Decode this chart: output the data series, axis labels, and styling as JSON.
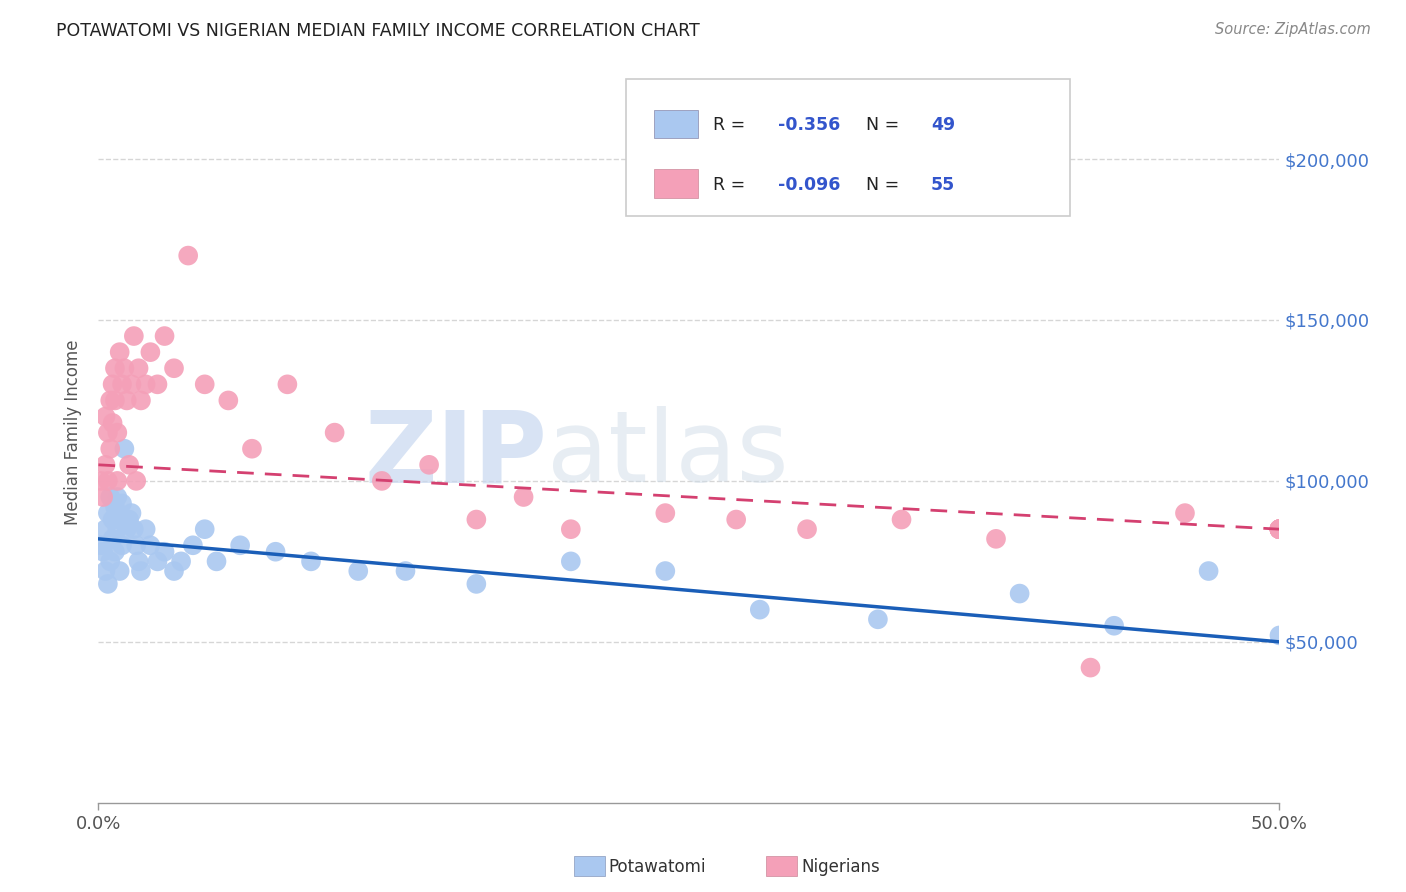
{
  "title": "POTAWATOMI VS NIGERIAN MEDIAN FAMILY INCOME CORRELATION CHART",
  "source": "Source: ZipAtlas.com",
  "ylabel": "Median Family Income",
  "xlim": [
    0.0,
    0.5
  ],
  "ylim": [
    0,
    230000
  ],
  "xtick_positions": [
    0.0,
    0.5
  ],
  "xtick_labels": [
    "0.0%",
    "50.0%"
  ],
  "ytick_positions": [
    50000,
    100000,
    150000,
    200000
  ],
  "ytick_labels": [
    "$50,000",
    "$100,000",
    "$150,000",
    "$200,000"
  ],
  "watermark_zip": "ZIP",
  "watermark_atlas": "atlas",
  "blue_color": "#aac8f0",
  "pink_color": "#f4a0b8",
  "blue_line_color": "#1a5eb8",
  "pink_line_color": "#d44070",
  "blue_R": "-0.356",
  "blue_N": "49",
  "pink_R": "-0.096",
  "pink_N": "55",
  "blue_label": "Potawatomi",
  "pink_label": "Nigerians",
  "legend_R_color": "#222222",
  "legend_val_color": "#3355cc",
  "blue_scatter_x": [
    0.001,
    0.002,
    0.003,
    0.003,
    0.004,
    0.004,
    0.005,
    0.005,
    0.006,
    0.006,
    0.007,
    0.007,
    0.008,
    0.008,
    0.009,
    0.009,
    0.01,
    0.01,
    0.011,
    0.012,
    0.013,
    0.014,
    0.015,
    0.016,
    0.017,
    0.018,
    0.02,
    0.022,
    0.025,
    0.028,
    0.032,
    0.035,
    0.04,
    0.045,
    0.05,
    0.06,
    0.075,
    0.09,
    0.11,
    0.13,
    0.16,
    0.2,
    0.24,
    0.28,
    0.33,
    0.39,
    0.43,
    0.47,
    0.5
  ],
  "blue_scatter_y": [
    80000,
    78000,
    85000,
    72000,
    90000,
    68000,
    95000,
    75000,
    88000,
    82000,
    92000,
    78000,
    95000,
    85000,
    88000,
    72000,
    93000,
    80000,
    110000,
    85000,
    88000,
    90000,
    85000,
    80000,
    75000,
    72000,
    85000,
    80000,
    75000,
    78000,
    72000,
    75000,
    80000,
    85000,
    75000,
    80000,
    78000,
    75000,
    72000,
    72000,
    68000,
    75000,
    72000,
    60000,
    57000,
    65000,
    55000,
    72000,
    52000
  ],
  "pink_scatter_x": [
    0.001,
    0.002,
    0.003,
    0.003,
    0.004,
    0.004,
    0.005,
    0.005,
    0.006,
    0.006,
    0.007,
    0.007,
    0.008,
    0.008,
    0.009,
    0.01,
    0.011,
    0.012,
    0.013,
    0.014,
    0.015,
    0.016,
    0.017,
    0.018,
    0.02,
    0.022,
    0.025,
    0.028,
    0.032,
    0.038,
    0.045,
    0.055,
    0.065,
    0.08,
    0.1,
    0.12,
    0.14,
    0.16,
    0.18,
    0.2,
    0.24,
    0.27,
    0.3,
    0.34,
    0.38,
    0.42,
    0.46,
    0.5,
    0.5,
    0.5,
    0.5,
    0.5,
    0.5,
    0.5,
    0.5
  ],
  "pink_scatter_y": [
    100000,
    95000,
    120000,
    105000,
    115000,
    100000,
    125000,
    110000,
    130000,
    118000,
    135000,
    125000,
    100000,
    115000,
    140000,
    130000,
    135000,
    125000,
    105000,
    130000,
    145000,
    100000,
    135000,
    125000,
    130000,
    140000,
    130000,
    145000,
    135000,
    170000,
    130000,
    125000,
    110000,
    130000,
    115000,
    100000,
    105000,
    88000,
    95000,
    85000,
    90000,
    88000,
    85000,
    88000,
    82000,
    42000,
    90000,
    85000,
    85000,
    85000,
    85000,
    85000,
    85000,
    85000,
    85000
  ],
  "blue_trend_x": [
    0.0,
    0.5
  ],
  "blue_trend_y": [
    82000,
    50000
  ],
  "pink_trend_x": [
    0.0,
    0.5
  ],
  "pink_trend_y": [
    105000,
    85000
  ],
  "background_color": "#ffffff",
  "grid_color": "#cccccc"
}
